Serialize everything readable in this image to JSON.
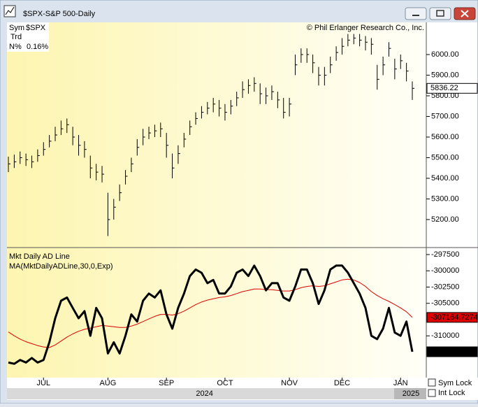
{
  "window": {
    "title": "$SPX-S&P 500-Daily"
  },
  "header": {
    "sym_label": "Sym",
    "sym": "$SPX",
    "trd_label": "Trd",
    "n_label": "N%",
    "n_value": "0.16%",
    "copyright": "© Phil Erlanger Research Co., Inc."
  },
  "chart_data": [
    {
      "type": "ohlc",
      "series": [
        {
          "name": "$SPX",
          "color": "#000000",
          "high": [
            5505,
            5515,
            5530,
            5520,
            5510,
            5540,
            5575,
            5610,
            5650,
            5680,
            5690,
            5650,
            5610,
            5580,
            5510,
            5470,
            5460,
            5330,
            5300,
            5370,
            5440,
            5500,
            5590,
            5640,
            5650,
            5660,
            5670,
            5620,
            5520,
            5560,
            5620,
            5680,
            5720,
            5750,
            5770,
            5790,
            5780,
            5760,
            5780,
            5820,
            5870,
            5880,
            5890,
            5860,
            5840,
            5850,
            5820,
            5790,
            5790,
            6000,
            6030,
            6030,
            6000,
            5940,
            5940,
            5990,
            6040,
            6080,
            6100,
            6100,
            6100,
            6090,
            6080,
            5950,
            5990,
            6060,
            5980,
            6000,
            5960,
            5870
          ],
          "low": [
            5430,
            5450,
            5470,
            5460,
            5450,
            5480,
            5510,
            5550,
            5580,
            5610,
            5620,
            5560,
            5510,
            5500,
            5400,
            5390,
            5380,
            5120,
            5200,
            5290,
            5370,
            5430,
            5510,
            5560,
            5590,
            5600,
            5600,
            5500,
            5400,
            5470,
            5550,
            5610,
            5660,
            5690,
            5710,
            5720,
            5700,
            5680,
            5710,
            5750,
            5790,
            5810,
            5820,
            5760,
            5760,
            5780,
            5740,
            5690,
            5700,
            5900,
            5960,
            5960,
            5910,
            5850,
            5850,
            5910,
            5970,
            6000,
            6040,
            6050,
            6040,
            6020,
            6000,
            5830,
            5900,
            5990,
            5880,
            5930,
            5870,
            5780
          ],
          "values": [
            5470,
            5480,
            5500,
            5490,
            5480,
            5510,
            5540,
            5580,
            5610,
            5640,
            5660,
            5600,
            5560,
            5540,
            5450,
            5430,
            5420,
            5200,
            5260,
            5330,
            5410,
            5470,
            5550,
            5600,
            5620,
            5630,
            5640,
            5560,
            5450,
            5520,
            5590,
            5650,
            5690,
            5720,
            5740,
            5760,
            5740,
            5720,
            5750,
            5790,
            5830,
            5850,
            5860,
            5810,
            5800,
            5820,
            5780,
            5720,
            5760,
            5950,
            6000,
            6000,
            5960,
            5900,
            5900,
            5950,
            6010,
            6040,
            6070,
            6080,
            6070,
            6060,
            6050,
            5880,
            5950,
            6030,
            5930,
            5970,
            5920,
            5836.22
          ]
        }
      ],
      "ylim": [
        5071,
        6156
      ],
      "yticks": [
        {
          "value": 5200,
          "label": "5200.00"
        },
        {
          "value": 5300,
          "label": "5300.00"
        },
        {
          "value": 5400,
          "label": "5400.00"
        },
        {
          "value": 5500,
          "label": "5500.00"
        },
        {
          "value": 5600,
          "label": "5600.00"
        },
        {
          "value": 5700,
          "label": "5700.00"
        },
        {
          "value": 5800,
          "label": "5800.00"
        },
        {
          "value": 5900,
          "label": "5900.00"
        },
        {
          "value": 6000,
          "label": "6000.00"
        }
      ]
    },
    {
      "type": "line",
      "categories": [
        null,
        null,
        null,
        null,
        null,
        null,
        "JUL",
        null,
        null,
        null,
        null,
        null,
        null,
        null,
        null,
        null,
        null,
        "AUG",
        null,
        null,
        null,
        null,
        null,
        null,
        null,
        null,
        null,
        "SEP",
        null,
        null,
        null,
        null,
        null,
        null,
        null,
        null,
        null,
        "OCT",
        null,
        null,
        null,
        null,
        null,
        null,
        null,
        null,
        null,
        null,
        "NOV",
        null,
        null,
        null,
        null,
        null,
        null,
        null,
        null,
        "DEC",
        null,
        null,
        null,
        null,
        null,
        null,
        null,
        null,
        null,
        "JAN",
        null,
        null
      ],
      "year_labels": [
        "2024",
        "2025"
      ],
      "series": [
        {
          "name": "Mkt Daily AD Line",
          "color": "#000000",
          "values": [
            -314100,
            -314300,
            -313700,
            -314100,
            -313400,
            -314100,
            -313700,
            -311000,
            -307300,
            -304600,
            -304100,
            -305700,
            -307300,
            -306200,
            -310000,
            -305700,
            -307300,
            -312700,
            -311000,
            -312700,
            -310000,
            -306700,
            -307800,
            -304600,
            -303500,
            -304100,
            -303000,
            -306700,
            -308900,
            -305700,
            -303500,
            -300800,
            -299800,
            -300300,
            -301900,
            -301400,
            -303500,
            -303500,
            -302400,
            -300300,
            -299800,
            -300800,
            -299200,
            -300800,
            -303000,
            -301900,
            -301900,
            -304100,
            -304600,
            -302400,
            -299800,
            -299800,
            -301900,
            -305100,
            -303000,
            -299800,
            -299200,
            -299200,
            -300300,
            -301900,
            -303500,
            -305700,
            -310000,
            -310500,
            -308900,
            -305700,
            -309500,
            -310000,
            -307800,
            -312448
          ]
        },
        {
          "name": "MA(MktDailyADLine,30,0,Exp)",
          "color": "#e00000",
          "values": [
            -309400,
            -310000,
            -310500,
            -310900,
            -311200,
            -311500,
            -311700,
            -311800,
            -311400,
            -310800,
            -310200,
            -309700,
            -309300,
            -309000,
            -308800,
            -308600,
            -308400,
            -308500,
            -308600,
            -308700,
            -308700,
            -308500,
            -308200,
            -307800,
            -307400,
            -307000,
            -306700,
            -306700,
            -306800,
            -306600,
            -306200,
            -305700,
            -305200,
            -304800,
            -304500,
            -304300,
            -304100,
            -304000,
            -303800,
            -303500,
            -303200,
            -303000,
            -302800,
            -302800,
            -302900,
            -302900,
            -303000,
            -303100,
            -303100,
            -302900,
            -302600,
            -302400,
            -302300,
            -302400,
            -302300,
            -302000,
            -301700,
            -301400,
            -301300,
            -301400,
            -301800,
            -302400,
            -303200,
            -303800,
            -304300,
            -304700,
            -305200,
            -305700,
            -306300,
            -307164.7274
          ]
        }
      ],
      "ylim": [
        -316425,
        -296747
      ],
      "yticks": [
        -310000,
        -305000,
        -302500,
        -300000,
        -297500
      ]
    }
  ],
  "controls": {
    "sym_lock": "Sym Lock",
    "int_lock": "Int Lock"
  }
}
